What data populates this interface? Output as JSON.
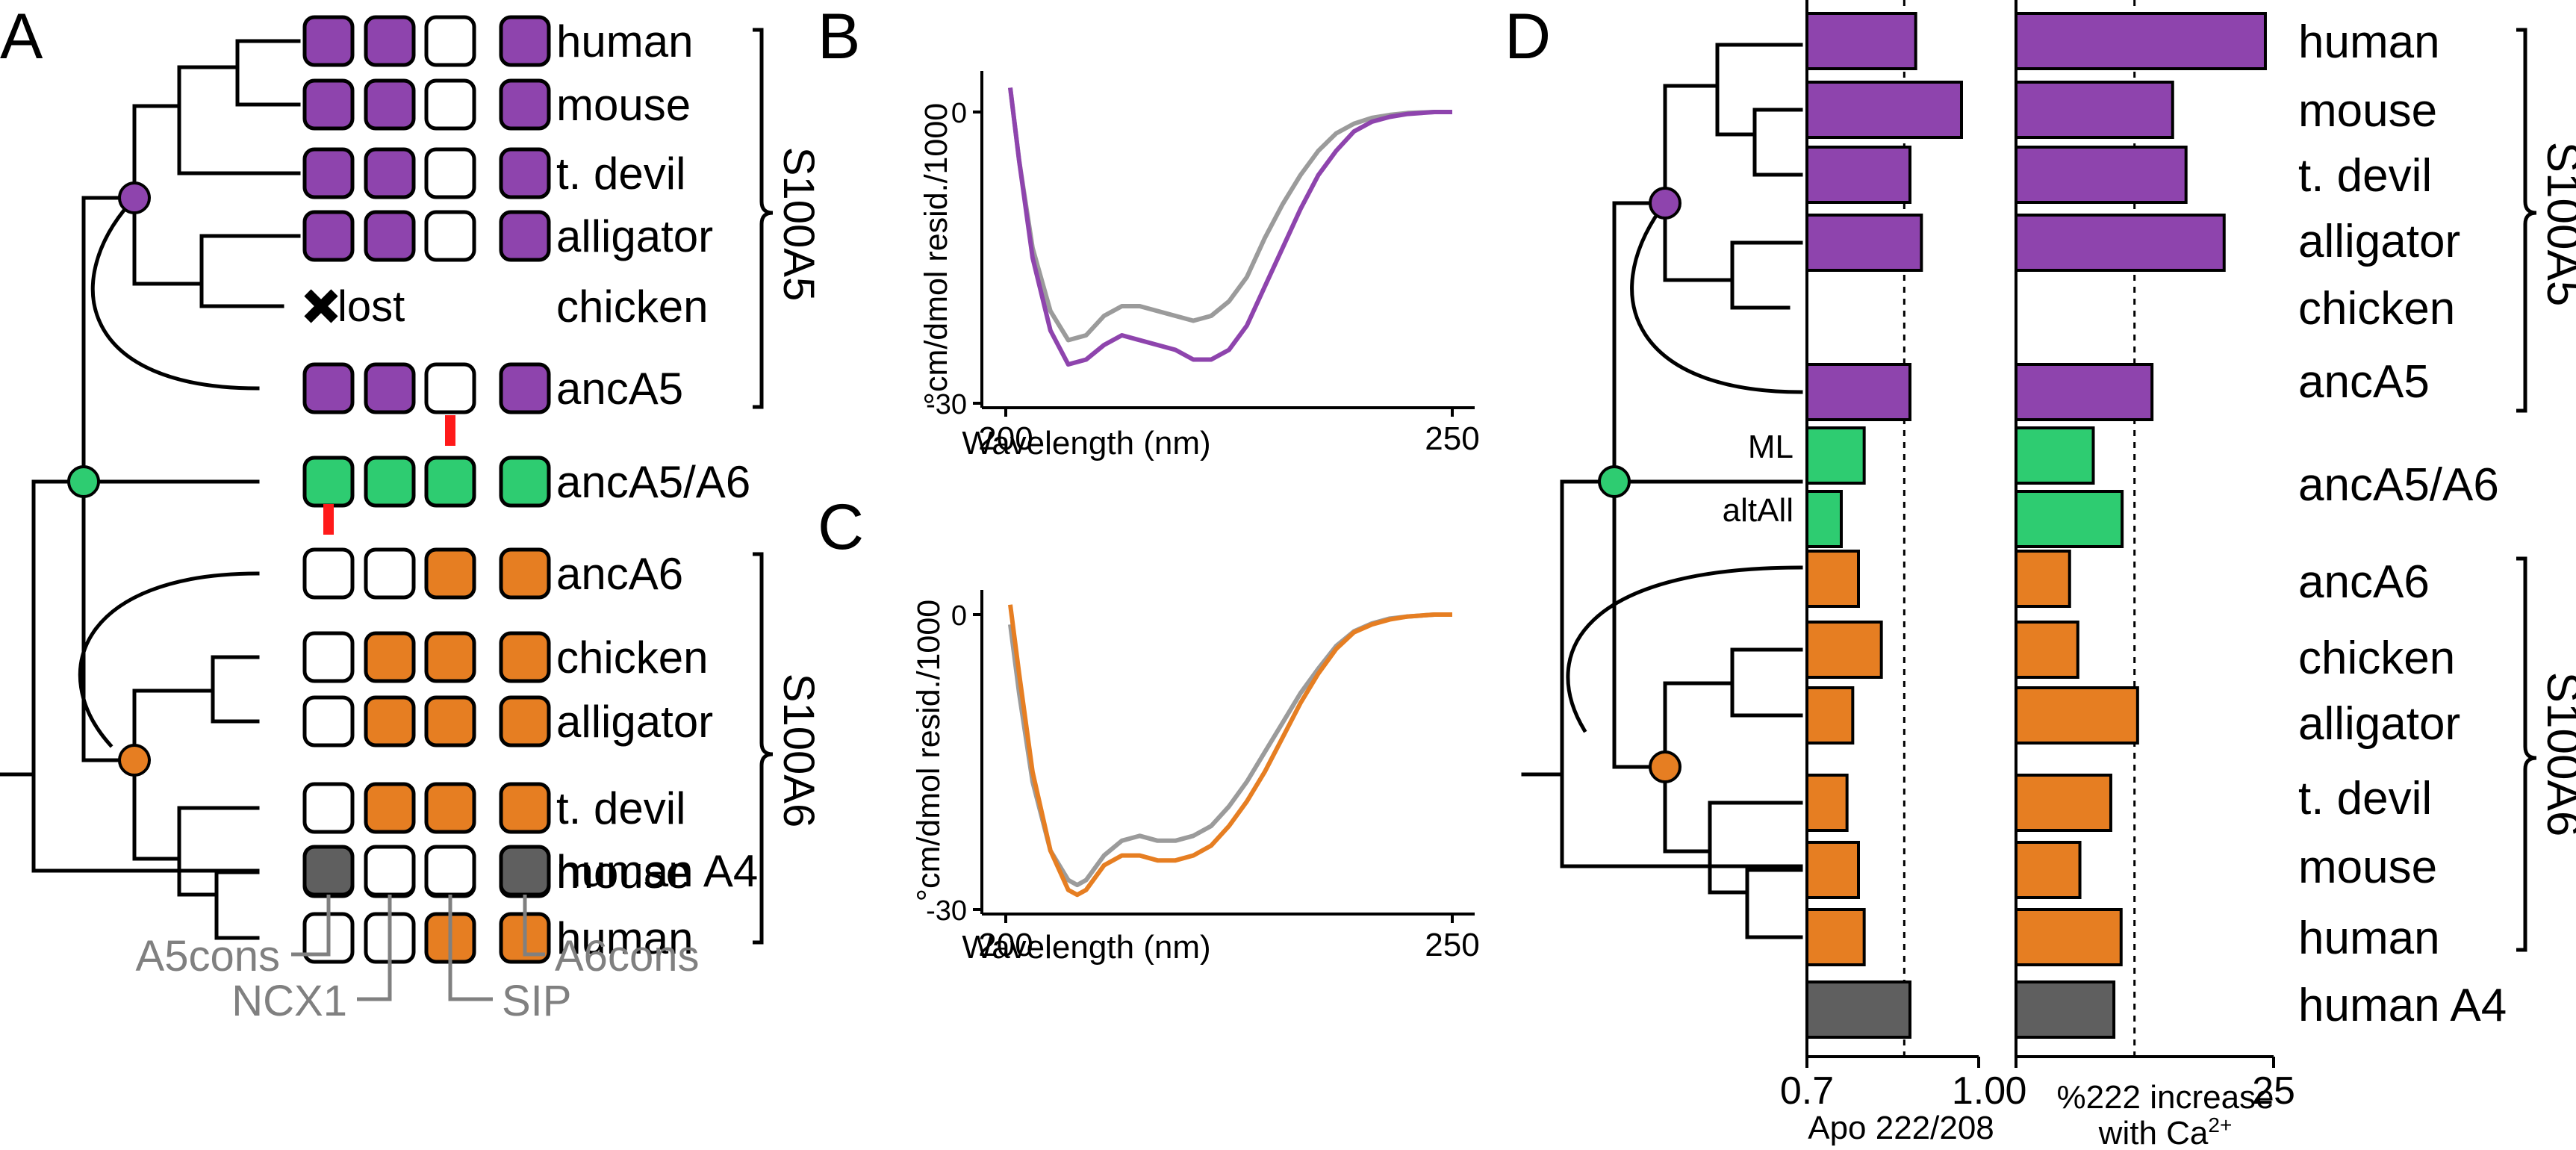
{
  "colors": {
    "purple": "#8e44ad",
    "green": "#2ecc71",
    "orange": "#e67e22",
    "gray": "#5f5f5f",
    "gray_curve": "#9b9b9b",
    "red": "#ff1a1a",
    "label_gray": "#808080"
  },
  "panel_labels": {
    "a": "A",
    "b": "B",
    "c": "C",
    "d": "D"
  },
  "panel_a": {
    "rows": [
      {
        "label": "human",
        "color": "purple",
        "boxes": [
          1,
          1,
          0,
          1
        ]
      },
      {
        "label": "mouse",
        "color": "purple",
        "boxes": [
          1,
          1,
          0,
          1
        ]
      },
      {
        "label": "t. devil",
        "color": "purple",
        "boxes": [
          1,
          1,
          0,
          1
        ]
      },
      {
        "label": "alligator",
        "color": "purple",
        "boxes": [
          1,
          1,
          0,
          1
        ]
      },
      {
        "label": "chicken",
        "color": "purple",
        "lost": true
      },
      {
        "label": "ancA5",
        "color": "purple",
        "boxes": [
          1,
          1,
          0,
          1
        ]
      },
      {
        "label": "ancA5/A6",
        "color": "green",
        "boxes": [
          1,
          1,
          1,
          1
        ]
      },
      {
        "label": "ancA6",
        "color": "orange",
        "boxes": [
          0,
          0,
          1,
          1
        ]
      },
      {
        "label": "chicken",
        "color": "orange",
        "boxes": [
          0,
          1,
          1,
          1
        ]
      },
      {
        "label": "alligator",
        "color": "orange",
        "boxes": [
          0,
          1,
          1,
          1
        ]
      },
      {
        "label": "t. devil",
        "color": "orange",
        "boxes": [
          0,
          1,
          1,
          1
        ]
      },
      {
        "label": "mouse",
        "color": "orange",
        "boxes": [
          0,
          0,
          1,
          1
        ]
      },
      {
        "label": "human",
        "color": "orange",
        "boxes": [
          0,
          0,
          1,
          1
        ]
      },
      {
        "label": "human A4",
        "color": "gray",
        "boxes": [
          1,
          0,
          0,
          1
        ]
      }
    ],
    "lost_text": "lost",
    "group_s100a5": "S100A5",
    "group_s100a6": "S100A6",
    "column_labels": [
      "A5cons",
      "NCX1",
      "SIP",
      "A6cons"
    ]
  },
  "panel_b": {
    "ylabel": "°cm/dmol resid./1000",
    "xlabel": "Wavelength (nm)",
    "yticks": [
      "0",
      "-30"
    ],
    "xticks": [
      "200",
      "250"
    ]
  },
  "panel_c": {
    "ylabel": "°cm/dmol resid./1000",
    "xlabel": "Wavelength (nm)",
    "yticks": [
      "0",
      "-30"
    ],
    "xticks": [
      "200",
      "250"
    ]
  },
  "panel_d": {
    "labels": [
      "human",
      "mouse",
      "t. devil",
      "alligator",
      "chicken",
      "ancA5",
      "ancA5/A6",
      "ancA6",
      "chicken",
      "alligator",
      "t. devil",
      "mouse",
      "human",
      "human A4"
    ],
    "ml_label": "ML",
    "altall_label": "altAll",
    "group_s100a5": "S100A5",
    "group_s100a6": "S100A6",
    "x1_ticks": [
      "0.7",
      "1.0"
    ],
    "x2_ticks": [
      "0",
      "25"
    ],
    "x1_label": "Apo 222/208",
    "x2_label_line1": "%222 increase",
    "x2_label_line2": "with Ca",
    "x2_label_sup": "2+"
  },
  "chart_data": [
    {
      "id": "B",
      "type": "line",
      "xlabel": "Wavelength (nm)",
      "ylabel": "°cm/dmol resid./1000",
      "xlim": [
        200,
        250
      ],
      "ylim": [
        -30,
        0
      ],
      "series": [
        {
          "color": "#8e44ad",
          "x": [
            200.5,
            201.5,
            203,
            205,
            207,
            209,
            211,
            213,
            215,
            217,
            219,
            221,
            223,
            225,
            227,
            229,
            231,
            233,
            235,
            237,
            239,
            241,
            243,
            245,
            248,
            250
          ],
          "y": [
            2.5,
            -5,
            -15,
            -22.5,
            -26,
            -25.5,
            -24,
            -23,
            -23.5,
            -24,
            -24.5,
            -25.5,
            -25.5,
            -24.5,
            -22,
            -18,
            -14,
            -10,
            -6.5,
            -4,
            -2,
            -1,
            -0.5,
            -0.2,
            0,
            0
          ]
        },
        {
          "color": "#9b9b9b",
          "x": [
            200.5,
            201.5,
            203,
            205,
            207,
            209,
            211,
            213,
            215,
            217,
            219,
            221,
            223,
            225,
            227,
            229,
            231,
            233,
            235,
            237,
            239,
            241,
            243,
            245,
            248,
            250
          ],
          "y": [
            2.5,
            -5,
            -14,
            -20.5,
            -23.5,
            -23,
            -21,
            -20,
            -20,
            -20.5,
            -21,
            -21.5,
            -21,
            -19.5,
            -17,
            -13,
            -9.5,
            -6.5,
            -4,
            -2.2,
            -1.2,
            -0.6,
            -0.3,
            -0.1,
            0,
            0
          ]
        }
      ]
    },
    {
      "id": "C",
      "type": "line",
      "xlabel": "Wavelength (nm)",
      "ylabel": "°cm/dmol resid./1000",
      "xlim": [
        200,
        250
      ],
      "ylim": [
        -30,
        0
      ],
      "series": [
        {
          "color": "#e67e22",
          "x": [
            200.5,
            201.5,
            203,
            205,
            207,
            208,
            209,
            211,
            213,
            215,
            217,
            219,
            221,
            223,
            225,
            227,
            229,
            231,
            233,
            235,
            237,
            239,
            241,
            243,
            245,
            248,
            250
          ],
          "y": [
            1,
            -6,
            -16,
            -24,
            -28,
            -28.5,
            -28,
            -25.5,
            -24.5,
            -24.5,
            -25,
            -25,
            -24.5,
            -23.5,
            -21.5,
            -19,
            -16,
            -12.5,
            -9,
            -6,
            -3.5,
            -1.8,
            -1,
            -0.5,
            -0.2,
            0,
            0
          ]
        },
        {
          "color": "#9b9b9b",
          "x": [
            200.5,
            201.5,
            203,
            205,
            207,
            208,
            209,
            211,
            213,
            215,
            217,
            219,
            221,
            223,
            225,
            227,
            229,
            231,
            233,
            235,
            237,
            239,
            241,
            243,
            245,
            248,
            250
          ],
          "y": [
            -1,
            -8,
            -17,
            -24,
            -27,
            -27.5,
            -27,
            -24.5,
            -23,
            -22.5,
            -23,
            -23,
            -22.5,
            -21.5,
            -19.5,
            -17,
            -14,
            -11,
            -8,
            -5.5,
            -3.2,
            -1.7,
            -0.9,
            -0.4,
            -0.2,
            0,
            0
          ]
        }
      ]
    },
    {
      "id": "D-left",
      "type": "bar",
      "xlabel": "Apo 222/208",
      "xlim": [
        0.7,
        1.0
      ],
      "reference_line": 0.87,
      "categories": [
        "human",
        "mouse",
        "t. devil",
        "alligator",
        "chicken",
        "ancA5",
        "ancA5/A6 ML",
        "ancA5/A6 altAll",
        "ancA6",
        "chicken",
        "alligator",
        "t. devil",
        "mouse",
        "human",
        "human A4"
      ],
      "values": [
        0.89,
        0.97,
        0.88,
        0.9,
        null,
        0.88,
        0.8,
        0.76,
        0.79,
        0.83,
        0.78,
        0.77,
        0.79,
        0.8,
        0.88
      ],
      "colors": [
        "purple",
        "purple",
        "purple",
        "purple",
        "purple",
        "purple",
        "green",
        "green",
        "orange",
        "orange",
        "orange",
        "orange",
        "orange",
        "orange",
        "gray"
      ]
    },
    {
      "id": "D-right",
      "type": "bar",
      "xlabel": "%222 increase with Ca2+",
      "xlim": [
        0,
        25
      ],
      "reference_line": 11.5,
      "categories": [
        "human",
        "mouse",
        "t. devil",
        "alligator",
        "chicken",
        "ancA5",
        "ancA5/A6 ML",
        "ancA5/A6 altAll",
        "ancA6",
        "chicken",
        "alligator",
        "t. devil",
        "mouse",
        "human",
        "human A4"
      ],
      "values": [
        24.2,
        15.2,
        16.5,
        20.2,
        null,
        13.2,
        7.5,
        10.3,
        5.2,
        6,
        11.8,
        9.2,
        6.2,
        10.2,
        9.5
      ],
      "colors": [
        "purple",
        "purple",
        "purple",
        "purple",
        "purple",
        "purple",
        "green",
        "green",
        "orange",
        "orange",
        "orange",
        "orange",
        "orange",
        "orange",
        "gray"
      ]
    }
  ]
}
